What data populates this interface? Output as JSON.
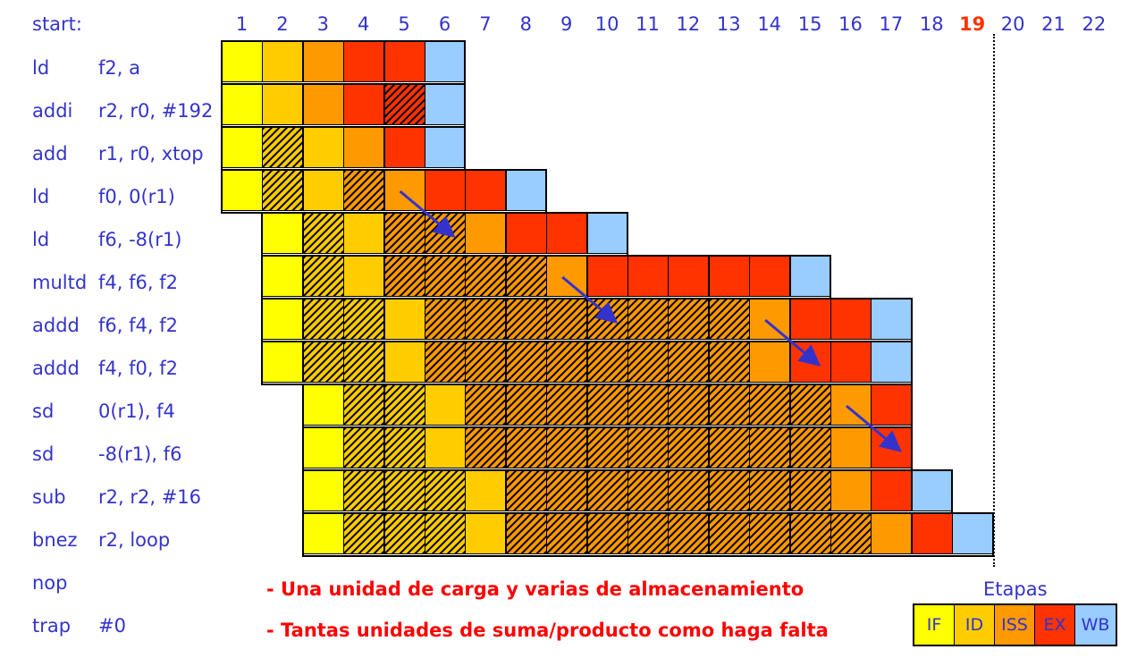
{
  "header": {
    "start_label": "start:",
    "cycles": [
      "1",
      "2",
      "3",
      "4",
      "5",
      "6",
      "7",
      "8",
      "9",
      "10",
      "11",
      "12",
      "13",
      "14",
      "15",
      "16",
      "17",
      "18",
      "19",
      "20",
      "21",
      "22"
    ],
    "highlight_cycle": "19"
  },
  "instructions": [
    {
      "op": "ld",
      "args": "f2, a",
      "cells": [
        {
          "c": 1,
          "s": "IF"
        },
        {
          "c": 2,
          "s": "ID"
        },
        {
          "c": 3,
          "s": "ISS"
        },
        {
          "c": 4,
          "s": "EX"
        },
        {
          "c": 5,
          "s": "EX"
        },
        {
          "c": 6,
          "s": "WB"
        }
      ]
    },
    {
      "op": "addi",
      "args": "r2, r0, #192",
      "cells": [
        {
          "c": 1,
          "s": "IF"
        },
        {
          "c": 2,
          "s": "ID"
        },
        {
          "c": 3,
          "s": "ISS"
        },
        {
          "c": 4,
          "s": "EX"
        },
        {
          "c": 5,
          "s": "EX",
          "h": 1
        },
        {
          "c": 6,
          "s": "WB"
        }
      ]
    },
    {
      "op": "add",
      "args": "r1, r0, xtop",
      "cells": [
        {
          "c": 1,
          "s": "IF"
        },
        {
          "c": 2,
          "s": "ID",
          "h": 1
        },
        {
          "c": 3,
          "s": "ID"
        },
        {
          "c": 4,
          "s": "ISS"
        },
        {
          "c": 5,
          "s": "EX"
        },
        {
          "c": 6,
          "s": "WB"
        }
      ]
    },
    {
      "op": "ld",
      "args": "f0, 0(r1)",
      "cells": [
        {
          "c": 1,
          "s": "IF"
        },
        {
          "c": 2,
          "s": "ID",
          "h": 1
        },
        {
          "c": 3,
          "s": "ID"
        },
        {
          "c": 4,
          "s": "ISS",
          "h": 1
        },
        {
          "c": 5,
          "s": "ISS"
        },
        {
          "c": 6,
          "s": "EX"
        },
        {
          "c": 7,
          "s": "EX"
        },
        {
          "c": 8,
          "s": "WB"
        }
      ]
    },
    {
      "op": "ld",
      "args": "f6, -8(r1)",
      "cells": [
        {
          "c": 2,
          "s": "IF"
        },
        {
          "c": 3,
          "s": "ID",
          "h": 1
        },
        {
          "c": 4,
          "s": "ID"
        },
        {
          "c": 5,
          "s": "ISS",
          "h": 1
        },
        {
          "c": 6,
          "s": "ISS",
          "h": 1
        },
        {
          "c": 7,
          "s": "ISS"
        },
        {
          "c": 8,
          "s": "EX"
        },
        {
          "c": 9,
          "s": "EX"
        },
        {
          "c": 10,
          "s": "WB"
        }
      ]
    },
    {
      "op": "multd",
      "args": "f4, f6, f2",
      "cells": [
        {
          "c": 2,
          "s": "IF"
        },
        {
          "c": 3,
          "s": "ID",
          "h": 1
        },
        {
          "c": 4,
          "s": "ID"
        },
        {
          "c": 5,
          "s": "ISS",
          "h": 1
        },
        {
          "c": 6,
          "s": "ISS",
          "h": 1
        },
        {
          "c": 7,
          "s": "ISS",
          "h": 1
        },
        {
          "c": 8,
          "s": "ISS",
          "h": 1
        },
        {
          "c": 9,
          "s": "ISS"
        },
        {
          "c": 10,
          "s": "EX"
        },
        {
          "c": 11,
          "s": "EX"
        },
        {
          "c": 12,
          "s": "EX"
        },
        {
          "c": 13,
          "s": "EX"
        },
        {
          "c": 14,
          "s": "EX"
        },
        {
          "c": 15,
          "s": "WB"
        }
      ]
    },
    {
      "op": "addd",
      "args": "f6, f4, f2",
      "cells": [
        {
          "c": 2,
          "s": "IF"
        },
        {
          "c": 3,
          "s": "ID",
          "h": 1
        },
        {
          "c": 4,
          "s": "ID",
          "h": 1
        },
        {
          "c": 5,
          "s": "ID"
        },
        {
          "c": 6,
          "s": "ISS",
          "h": 1
        },
        {
          "c": 7,
          "s": "ISS",
          "h": 1
        },
        {
          "c": 8,
          "s": "ISS",
          "h": 1
        },
        {
          "c": 9,
          "s": "ISS",
          "h": 1
        },
        {
          "c": 10,
          "s": "ISS",
          "h": 1
        },
        {
          "c": 11,
          "s": "ISS",
          "h": 1
        },
        {
          "c": 12,
          "s": "ISS",
          "h": 1
        },
        {
          "c": 13,
          "s": "ISS",
          "h": 1
        },
        {
          "c": 14,
          "s": "ISS"
        },
        {
          "c": 15,
          "s": "EX"
        },
        {
          "c": 16,
          "s": "EX"
        },
        {
          "c": 17,
          "s": "WB"
        }
      ]
    },
    {
      "op": "addd",
      "args": "f4, f0, f2",
      "cells": [
        {
          "c": 2,
          "s": "IF"
        },
        {
          "c": 3,
          "s": "ID",
          "h": 1
        },
        {
          "c": 4,
          "s": "ID",
          "h": 1
        },
        {
          "c": 5,
          "s": "ID"
        },
        {
          "c": 6,
          "s": "ISS",
          "h": 1
        },
        {
          "c": 7,
          "s": "ISS",
          "h": 1
        },
        {
          "c": 8,
          "s": "ISS",
          "h": 1
        },
        {
          "c": 9,
          "s": "ISS",
          "h": 1
        },
        {
          "c": 10,
          "s": "ISS",
          "h": 1
        },
        {
          "c": 11,
          "s": "ISS",
          "h": 1
        },
        {
          "c": 12,
          "s": "ISS",
          "h": 1
        },
        {
          "c": 13,
          "s": "ISS",
          "h": 1
        },
        {
          "c": 14,
          "s": "ISS"
        },
        {
          "c": 15,
          "s": "EX"
        },
        {
          "c": 16,
          "s": "EX"
        },
        {
          "c": 17,
          "s": "WB"
        }
      ]
    },
    {
      "op": "sd",
      "args": "0(r1), f4",
      "cells": [
        {
          "c": 3,
          "s": "IF"
        },
        {
          "c": 4,
          "s": "ID",
          "h": 1
        },
        {
          "c": 5,
          "s": "ID",
          "h": 1
        },
        {
          "c": 6,
          "s": "ID"
        },
        {
          "c": 7,
          "s": "ISS",
          "h": 1
        },
        {
          "c": 8,
          "s": "ISS",
          "h": 1
        },
        {
          "c": 9,
          "s": "ISS",
          "h": 1
        },
        {
          "c": 10,
          "s": "ISS",
          "h": 1
        },
        {
          "c": 11,
          "s": "ISS",
          "h": 1
        },
        {
          "c": 12,
          "s": "ISS",
          "h": 1
        },
        {
          "c": 13,
          "s": "ISS",
          "h": 1
        },
        {
          "c": 14,
          "s": "ISS",
          "h": 1
        },
        {
          "c": 15,
          "s": "ISS",
          "h": 1
        },
        {
          "c": 16,
          "s": "ISS"
        },
        {
          "c": 17,
          "s": "EX"
        }
      ]
    },
    {
      "op": "sd",
      "args": "-8(r1), f6",
      "cells": [
        {
          "c": 3,
          "s": "IF"
        },
        {
          "c": 4,
          "s": "ID",
          "h": 1
        },
        {
          "c": 5,
          "s": "ID",
          "h": 1
        },
        {
          "c": 6,
          "s": "ID"
        },
        {
          "c": 7,
          "s": "ISS",
          "h": 1
        },
        {
          "c": 8,
          "s": "ISS",
          "h": 1
        },
        {
          "c": 9,
          "s": "ISS",
          "h": 1
        },
        {
          "c": 10,
          "s": "ISS",
          "h": 1
        },
        {
          "c": 11,
          "s": "ISS",
          "h": 1
        },
        {
          "c": 12,
          "s": "ISS",
          "h": 1
        },
        {
          "c": 13,
          "s": "ISS",
          "h": 1
        },
        {
          "c": 14,
          "s": "ISS",
          "h": 1
        },
        {
          "c": 15,
          "s": "ISS",
          "h": 1
        },
        {
          "c": 16,
          "s": "ISS"
        },
        {
          "c": 17,
          "s": "EX"
        }
      ]
    },
    {
      "op": "sub",
      "args": "r2, r2, #16",
      "cells": [
        {
          "c": 3,
          "s": "IF"
        },
        {
          "c": 4,
          "s": "ID",
          "h": 1
        },
        {
          "c": 5,
          "s": "ID",
          "h": 1
        },
        {
          "c": 6,
          "s": "ID",
          "h": 1
        },
        {
          "c": 7,
          "s": "ID"
        },
        {
          "c": 8,
          "s": "ISS",
          "h": 1
        },
        {
          "c": 9,
          "s": "ISS",
          "h": 1
        },
        {
          "c": 10,
          "s": "ISS",
          "h": 1
        },
        {
          "c": 11,
          "s": "ISS",
          "h": 1
        },
        {
          "c": 12,
          "s": "ISS",
          "h": 1
        },
        {
          "c": 13,
          "s": "ISS",
          "h": 1
        },
        {
          "c": 14,
          "s": "ISS",
          "h": 1
        },
        {
          "c": 15,
          "s": "ISS",
          "h": 1
        },
        {
          "c": 16,
          "s": "ISS"
        },
        {
          "c": 17,
          "s": "EX"
        },
        {
          "c": 18,
          "s": "WB"
        }
      ]
    },
    {
      "op": "bnez",
      "args": "r2, loop",
      "cells": [
        {
          "c": 3,
          "s": "IF"
        },
        {
          "c": 4,
          "s": "ID",
          "h": 1
        },
        {
          "c": 5,
          "s": "ID",
          "h": 1
        },
        {
          "c": 6,
          "s": "ID",
          "h": 1
        },
        {
          "c": 7,
          "s": "ID"
        },
        {
          "c": 8,
          "s": "ISS",
          "h": 1
        },
        {
          "c": 9,
          "s": "ISS",
          "h": 1
        },
        {
          "c": 10,
          "s": "ISS",
          "h": 1
        },
        {
          "c": 11,
          "s": "ISS",
          "h": 1
        },
        {
          "c": 12,
          "s": "ISS",
          "h": 1
        },
        {
          "c": 13,
          "s": "ISS",
          "h": 1
        },
        {
          "c": 14,
          "s": "ISS",
          "h": 1
        },
        {
          "c": 15,
          "s": "ISS",
          "h": 1
        },
        {
          "c": 16,
          "s": "ISS",
          "h": 1
        },
        {
          "c": 17,
          "s": "ISS"
        },
        {
          "c": 18,
          "s": "EX"
        },
        {
          "c": 19,
          "s": "WB"
        }
      ]
    },
    {
      "op": "nop",
      "args": "",
      "cells": []
    },
    {
      "op": "trap",
      "args": "#0",
      "cells": []
    }
  ],
  "notes": [
    "- Una unidad de carga y varias de almacenamiento",
    "- Tantas unidades de suma/producto como haga falta"
  ],
  "legend": {
    "title": "Etapas",
    "items": [
      {
        "label": "IF",
        "color": "#ffff00"
      },
      {
        "label": "ID",
        "color": "#ffcc00"
      },
      {
        "label": "ISS",
        "color": "#ff9900"
      },
      {
        "label": "EX",
        "color": "#ff3300"
      },
      {
        "label": "WB",
        "color": "#99ccff"
      }
    ]
  },
  "stage_colors": {
    "IF": "#ffff00",
    "ID": "#ffcc00",
    "ISS": "#ff9900",
    "EX": "#ff3300",
    "WB": "#99ccff"
  },
  "arrow_color": "#3333cc",
  "forwarding_arrows": [
    {
      "from_row": 3,
      "from_col": 5,
      "to_row": 4,
      "to_col": 6
    },
    {
      "from_row": 5,
      "from_col": 9,
      "to_row": 6,
      "to_col": 10
    },
    {
      "from_row": 6,
      "from_col": 14,
      "to_row": 7,
      "to_col": 15
    },
    {
      "from_row": 8,
      "from_col": 16,
      "to_row": 9,
      "to_col": 17
    }
  ]
}
